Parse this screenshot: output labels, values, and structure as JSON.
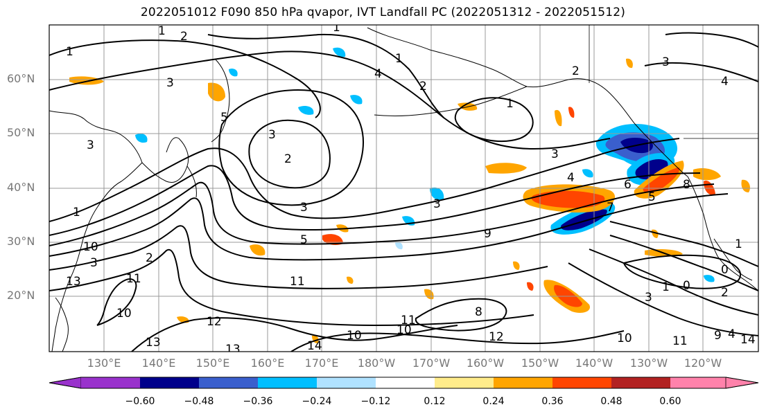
{
  "title": "2022051012 F090 850 hPa qvapor, IVT Landfall PC (2022051312 - 2022051512)",
  "lat_labels": [
    "60°N",
    "50°N",
    "40°N",
    "30°N",
    "20°N"
  ],
  "lon_labels": [
    "130°E",
    "140°E",
    "150°E",
    "160°E",
    "170°E",
    "180°W",
    "170°W",
    "160°W",
    "150°W",
    "140°W",
    "130°W",
    "120°W"
  ],
  "colorbar": {
    "ticks": [
      "−0.60",
      "−0.48",
      "−0.36",
      "−0.24",
      "−0.12",
      "0.12",
      "0.24",
      "0.36",
      "0.48",
      "0.60"
    ],
    "colors": [
      "#9932cc",
      "#00008b",
      "#3a5fcd",
      "#00bfff",
      "#b0e2ff",
      "#ffffff",
      "#ffec8b",
      "#ffa500",
      "#ff4500",
      "#b22222",
      "#ff82ab"
    ]
  },
  "contour_labels": [
    "1",
    "2",
    "1",
    "3",
    "4",
    "1",
    "2",
    "1",
    "2",
    "3",
    "4",
    "1",
    "3",
    "5",
    "3",
    "2",
    "3",
    "4",
    "3",
    "5",
    "3",
    "6",
    "7",
    "9",
    "8",
    "2",
    "5",
    "1",
    "10",
    "3",
    "13",
    "11",
    "11",
    "12",
    "10",
    "13",
    "13",
    "14",
    "10",
    "11",
    "10",
    "12",
    "10",
    "8",
    "11",
    "9",
    "3",
    "1",
    "0",
    "2",
    "0",
    "1",
    "4",
    "14"
  ],
  "anomaly_colors": {
    "strong_neg": "#00008b",
    "mid_neg": "#3a5fcd",
    "neg": "#00bfff",
    "weak_neg": "#b0e2ff",
    "weak_pos": "#ffec8b",
    "pos": "#ffa500",
    "mid_pos": "#ff4500",
    "strong_pos": "#b22222"
  }
}
